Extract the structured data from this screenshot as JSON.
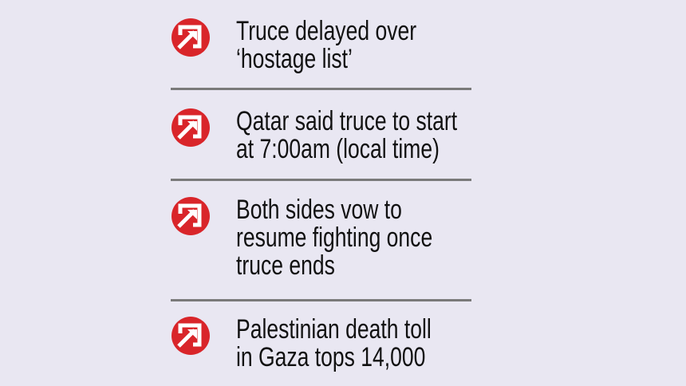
{
  "accent_color": "#d9252a",
  "items": [
    {
      "icon": "arrow-up-right-icon",
      "lines": [
        "Truce delayed over",
        "‘hostage list’"
      ]
    },
    {
      "icon": "arrow-up-right-icon",
      "lines": [
        "Qatar said truce to start",
        "at 7:00am (local time)"
      ]
    },
    {
      "icon": "arrow-up-right-icon",
      "lines": [
        "Both sides vow to",
        "resume fighting once",
        "truce ends"
      ]
    },
    {
      "icon": "arrow-up-right-icon",
      "lines": [
        "Palestinian death toll",
        "in Gaza tops 14,000"
      ]
    }
  ]
}
